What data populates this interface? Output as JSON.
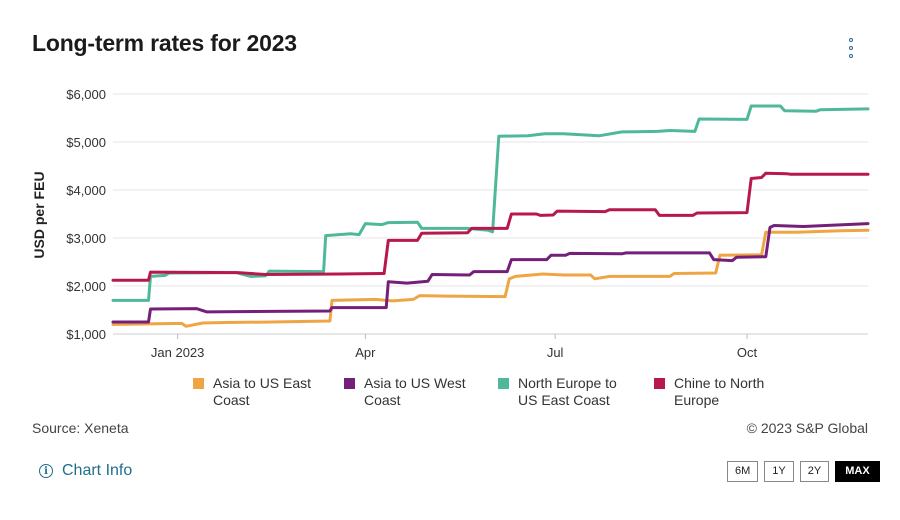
{
  "header": {
    "title": "Long-term rates for 2023",
    "menu_icon": "vertical-ellipsis-icon"
  },
  "chart_data": {
    "type": "line",
    "title": "Long-term rates for 2023",
    "xlabel": "",
    "ylabel": "USD per FEU",
    "ylim": [
      1000,
      6000
    ],
    "yticks": [
      1000,
      2000,
      3000,
      4000,
      5000,
      6000
    ],
    "ytick_labels": [
      "$1,000",
      "$2,000",
      "$3,000",
      "$4,000",
      "$5,000",
      "$6,000"
    ],
    "xlim": [
      "2022-12-01",
      "2023-11-28"
    ],
    "xticks": [
      "2023-01-01",
      "2023-04-01",
      "2023-07-01",
      "2023-10-01"
    ],
    "xtick_labels": [
      "Jan 2023",
      "Apr",
      "Jul",
      "Oct"
    ],
    "grid": true,
    "legend_position": "bottom",
    "series": [
      {
        "name": "Asia to US East Coast",
        "color": "#f0a545",
        "points": [
          [
            "2022-12-01",
            1200
          ],
          [
            "2022-12-18",
            1210
          ],
          [
            "2023-01-03",
            1220
          ],
          [
            "2023-01-05",
            1160
          ],
          [
            "2023-01-13",
            1230
          ],
          [
            "2023-01-24",
            1240
          ],
          [
            "2023-02-15",
            1250
          ],
          [
            "2023-03-15",
            1270
          ],
          [
            "2023-03-16",
            1700
          ],
          [
            "2023-04-06",
            1720
          ],
          [
            "2023-04-14",
            1690
          ],
          [
            "2023-04-24",
            1720
          ],
          [
            "2023-04-27",
            1800
          ],
          [
            "2023-05-10",
            1790
          ],
          [
            "2023-06-07",
            1780
          ],
          [
            "2023-06-09",
            2150
          ],
          [
            "2023-06-12",
            2200
          ],
          [
            "2023-06-25",
            2250
          ],
          [
            "2023-07-05",
            2230
          ],
          [
            "2023-07-18",
            2230
          ],
          [
            "2023-07-20",
            2150
          ],
          [
            "2023-07-27",
            2200
          ],
          [
            "2023-08-10",
            2200
          ],
          [
            "2023-08-25",
            2200
          ],
          [
            "2023-08-27",
            2260
          ],
          [
            "2023-09-16",
            2270
          ],
          [
            "2023-09-18",
            2640
          ],
          [
            "2023-10-08",
            2650
          ],
          [
            "2023-10-10",
            3120
          ],
          [
            "2023-10-25",
            3120
          ],
          [
            "2023-11-15",
            3150
          ],
          [
            "2023-11-28",
            3160
          ]
        ]
      },
      {
        "name": "Asia to US West Coast",
        "color": "#74207a",
        "points": [
          [
            "2022-12-01",
            1250
          ],
          [
            "2022-12-18",
            1250
          ],
          [
            "2022-12-19",
            1520
          ],
          [
            "2023-01-10",
            1530
          ],
          [
            "2023-01-15",
            1460
          ],
          [
            "2023-02-15",
            1470
          ],
          [
            "2023-03-15",
            1480
          ],
          [
            "2023-03-16",
            1550
          ],
          [
            "2023-04-11",
            1550
          ],
          [
            "2023-04-12",
            2090
          ],
          [
            "2023-04-21",
            2060
          ],
          [
            "2023-05-01",
            2100
          ],
          [
            "2023-05-03",
            2240
          ],
          [
            "2023-05-21",
            2230
          ],
          [
            "2023-05-23",
            2300
          ],
          [
            "2023-06-08",
            2300
          ],
          [
            "2023-06-10",
            2550
          ],
          [
            "2023-06-27",
            2550
          ],
          [
            "2023-06-29",
            2640
          ],
          [
            "2023-07-06",
            2640
          ],
          [
            "2023-07-08",
            2680
          ],
          [
            "2023-08-02",
            2670
          ],
          [
            "2023-08-04",
            2690
          ],
          [
            "2023-09-13",
            2690
          ],
          [
            "2023-09-15",
            2550
          ],
          [
            "2023-09-24",
            2530
          ],
          [
            "2023-09-26",
            2600
          ],
          [
            "2023-10-10",
            2610
          ],
          [
            "2023-10-12",
            3220
          ],
          [
            "2023-10-14",
            3260
          ],
          [
            "2023-10-28",
            3240
          ],
          [
            "2023-11-28",
            3300
          ]
        ]
      },
      {
        "name": "North Europe to US East Coast",
        "color": "#4fb89a",
        "points": [
          [
            "2022-12-01",
            1700
          ],
          [
            "2022-12-18",
            1700
          ],
          [
            "2022-12-19",
            2200
          ],
          [
            "2022-12-26",
            2220
          ],
          [
            "2022-12-28",
            2270
          ],
          [
            "2023-01-29",
            2280
          ],
          [
            "2023-02-05",
            2200
          ],
          [
            "2023-02-12",
            2210
          ],
          [
            "2023-02-14",
            2310
          ],
          [
            "2023-03-12",
            2300
          ],
          [
            "2023-03-13",
            3050
          ],
          [
            "2023-03-25",
            3090
          ],
          [
            "2023-03-29",
            3070
          ],
          [
            "2023-04-01",
            3300
          ],
          [
            "2023-04-09",
            3280
          ],
          [
            "2023-04-12",
            3320
          ],
          [
            "2023-04-26",
            3330
          ],
          [
            "2023-04-28",
            3200
          ],
          [
            "2023-05-20",
            3200
          ],
          [
            "2023-05-30",
            3160
          ],
          [
            "2023-06-01",
            3130
          ],
          [
            "2023-06-04",
            5120
          ],
          [
            "2023-06-18",
            5130
          ],
          [
            "2023-06-26",
            5170
          ],
          [
            "2023-07-05",
            5170
          ],
          [
            "2023-07-22",
            5130
          ],
          [
            "2023-08-02",
            5210
          ],
          [
            "2023-08-19",
            5220
          ],
          [
            "2023-08-25",
            5240
          ],
          [
            "2023-09-06",
            5220
          ],
          [
            "2023-09-08",
            5480
          ],
          [
            "2023-10-01",
            5470
          ],
          [
            "2023-10-03",
            5750
          ],
          [
            "2023-10-17",
            5750
          ],
          [
            "2023-10-19",
            5650
          ],
          [
            "2023-11-03",
            5640
          ],
          [
            "2023-11-05",
            5670
          ],
          [
            "2023-11-28",
            5690
          ]
        ]
      },
      {
        "name": "Chine to North Europe",
        "color": "#b8194d",
        "points": [
          [
            "2022-12-01",
            2120
          ],
          [
            "2022-12-18",
            2120
          ],
          [
            "2022-12-19",
            2290
          ],
          [
            "2023-01-30",
            2280
          ],
          [
            "2023-02-12",
            2240
          ],
          [
            "2023-03-20",
            2250
          ],
          [
            "2023-04-10",
            2260
          ],
          [
            "2023-04-12",
            2950
          ],
          [
            "2023-04-26",
            2950
          ],
          [
            "2023-04-28",
            3100
          ],
          [
            "2023-05-20",
            3110
          ],
          [
            "2023-05-22",
            3200
          ],
          [
            "2023-06-08",
            3200
          ],
          [
            "2023-06-10",
            3500
          ],
          [
            "2023-06-22",
            3500
          ],
          [
            "2023-06-24",
            3470
          ],
          [
            "2023-06-30",
            3480
          ],
          [
            "2023-07-02",
            3560
          ],
          [
            "2023-07-25",
            3550
          ],
          [
            "2023-07-27",
            3590
          ],
          [
            "2023-08-18",
            3590
          ],
          [
            "2023-08-20",
            3470
          ],
          [
            "2023-09-05",
            3470
          ],
          [
            "2023-09-07",
            3520
          ],
          [
            "2023-10-01",
            3530
          ],
          [
            "2023-10-03",
            4240
          ],
          [
            "2023-10-08",
            4260
          ],
          [
            "2023-10-10",
            4350
          ],
          [
            "2023-10-20",
            4340
          ],
          [
            "2023-10-22",
            4330
          ],
          [
            "2023-11-28",
            4330
          ]
        ]
      }
    ]
  },
  "legend": [
    {
      "label": "Asia to US East Coast",
      "color": "#f0a545"
    },
    {
      "label": "Asia to US West Coast",
      "color": "#74207a"
    },
    {
      "label": "North Europe to US East Coast",
      "color": "#4fb89a"
    },
    {
      "label": "Chine to North Europe",
      "color": "#b8194d"
    }
  ],
  "footer": {
    "source": "Source: Xeneta",
    "copyright": "© 2023 S&P Global",
    "chart_info_label": "Chart Info",
    "chart_info_icon": "info-circle-icon",
    "ranges": [
      {
        "label": "6M",
        "active": false
      },
      {
        "label": "1Y",
        "active": false
      },
      {
        "label": "2Y",
        "active": false
      },
      {
        "label": "MAX",
        "active": true
      }
    ]
  }
}
